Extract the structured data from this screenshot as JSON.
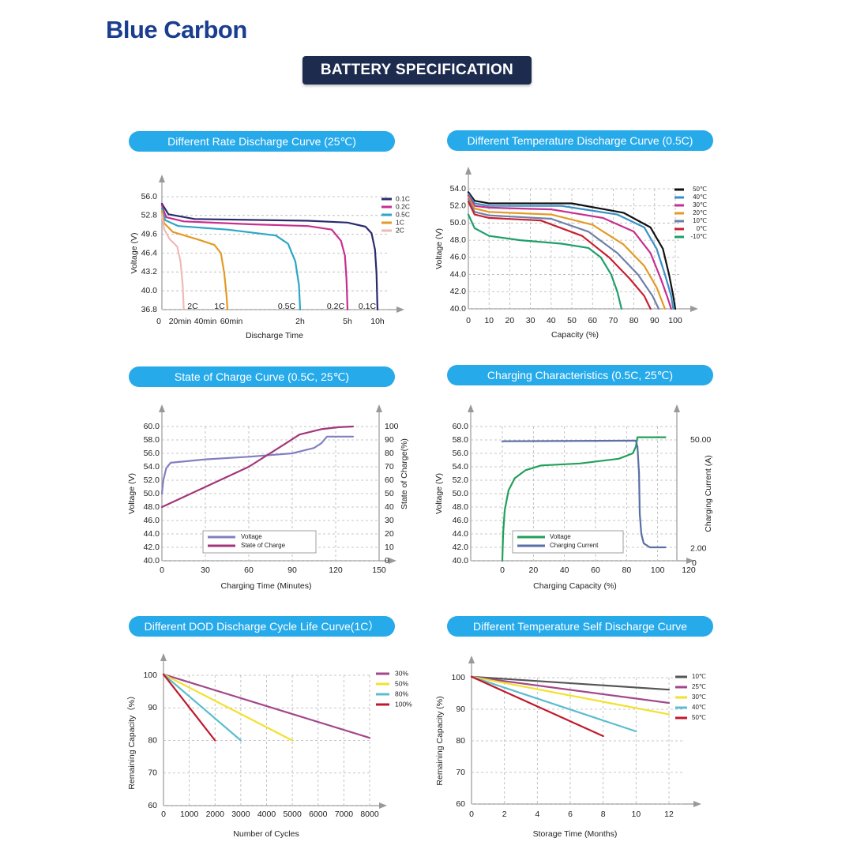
{
  "brand": "Blue Carbon",
  "banner": "BATTERY SPECIFICATION",
  "colors": {
    "pill": "#27aaea",
    "banner": "#1d2b4f",
    "brand": "#1b3d8f"
  },
  "chart_data": [
    {
      "title": "Different Rate Discharge Curve (25℃)",
      "type": "line",
      "xlabel": "Discharge Time",
      "ylabel": "Voltage (V)",
      "ylim": [
        36.8,
        56.0
      ],
      "yticks": [
        "56.0",
        "52.8",
        "49.6",
        "46.4",
        "43.2",
        "40.0",
        "36.8"
      ],
      "xtick_labels": [
        {
          "x": 0,
          "label": "0"
        },
        {
          "x": 20,
          "label": "20min"
        },
        {
          "x": 40,
          "label": "40min"
        },
        {
          "x": 60,
          "label": "60min"
        },
        {
          "x": 120,
          "label": "2h"
        },
        {
          "x": 300,
          "label": "5h"
        },
        {
          "x": 600,
          "label": "10h"
        }
      ],
      "x_unit": "minutes",
      "legend_placement": "top-right",
      "series": [
        {
          "name": "0.1C",
          "end_label": "0.1C",
          "color": "#2a2a6e",
          "points": [
            [
              0,
              54.8
            ],
            [
              6,
              53
            ],
            [
              30,
              52.2
            ],
            [
              150,
              51.9
            ],
            [
              300,
              51.6
            ],
            [
              480,
              50.9
            ],
            [
              540,
              49.8
            ],
            [
              575,
              47
            ],
            [
              590,
              43
            ],
            [
              598,
              38
            ],
            [
              600,
              36.8
            ]
          ]
        },
        {
          "name": "0.2C",
          "end_label": "0.2C",
          "color": "#c72f8f",
          "points": [
            [
              0,
              54.5
            ],
            [
              4,
              52.5
            ],
            [
              20,
              51.8
            ],
            [
              80,
              51.3
            ],
            [
              150,
              51.0
            ],
            [
              240,
              50.4
            ],
            [
              275,
              48.5
            ],
            [
              290,
              46
            ],
            [
              296,
              42
            ],
            [
              300,
              36.8
            ]
          ]
        },
        {
          "name": "0.5C",
          "end_label": "0.5C",
          "color": "#2aa7c4",
          "points": [
            [
              0,
              54
            ],
            [
              3,
              52
            ],
            [
              15,
              51
            ],
            [
              60,
              50.4
            ],
            [
              100,
              49.4
            ],
            [
              110,
              48
            ],
            [
              116,
              45
            ],
            [
              119,
              41
            ],
            [
              120,
              36.8
            ]
          ]
        },
        {
          "name": "1C",
          "end_label": "1C",
          "color": "#e49a25",
          "points": [
            [
              0,
              53.6
            ],
            [
              2,
              51.5
            ],
            [
              10,
              50
            ],
            [
              35,
              48.6
            ],
            [
              48,
              47.8
            ],
            [
              54,
              46.4
            ],
            [
              57,
              43
            ],
            [
              59,
              39.5
            ],
            [
              60,
              36.8
            ]
          ]
        },
        {
          "name": "2C",
          "end_label": "2C",
          "color": "#f2b8b8",
          "points": [
            [
              0,
              53
            ],
            [
              2,
              50.5
            ],
            [
              7,
              48.8
            ],
            [
              14,
              47.5
            ],
            [
              17,
              45
            ],
            [
              19,
              41
            ],
            [
              20,
              36.8
            ]
          ]
        }
      ]
    },
    {
      "title": "Different Temperature Discharge  Curve (0.5C)",
      "type": "line",
      "xlabel": "Capacity (%)",
      "ylabel": "Voltage (V)",
      "ylim": [
        40.0,
        54.0
      ],
      "xlim": [
        0,
        100
      ],
      "yticks": [
        "54.0",
        "52.0",
        "50.0",
        "48.0",
        "46.0",
        "44.0",
        "42.0",
        "40.0"
      ],
      "xticks": [
        "0",
        "10",
        "20",
        "30",
        "40",
        "50",
        "60",
        "70",
        "80",
        "90",
        "100"
      ],
      "legend_placement": "top-right",
      "series": [
        {
          "name": "50℃",
          "color": "#111111",
          "points": [
            [
              0,
              53.6
            ],
            [
              3,
              52.6
            ],
            [
              10,
              52.3
            ],
            [
              50,
              52.3
            ],
            [
              75,
              51.2
            ],
            [
              88,
              49.5
            ],
            [
              94,
              47
            ],
            [
              97,
              44
            ],
            [
              99,
              41.5
            ],
            [
              100,
              40
            ]
          ]
        },
        {
          "name": "40℃",
          "color": "#3a8fc9",
          "points": [
            [
              0,
              53.4
            ],
            [
              3,
              52.3
            ],
            [
              10,
              52
            ],
            [
              45,
              52
            ],
            [
              72,
              51
            ],
            [
              85,
              49.5
            ],
            [
              91,
              47
            ],
            [
              95,
              44
            ],
            [
              98,
              41.5
            ],
            [
              99,
              40
            ]
          ]
        },
        {
          "name": "30℃",
          "color": "#c72f8f",
          "points": [
            [
              0,
              53.2
            ],
            [
              3,
              52
            ],
            [
              10,
              51.8
            ],
            [
              40,
              51.6
            ],
            [
              65,
              50.6
            ],
            [
              80,
              49
            ],
            [
              88,
              46.5
            ],
            [
              93,
              43.5
            ],
            [
              96,
              41.5
            ],
            [
              98,
              40
            ]
          ]
        },
        {
          "name": "20℃",
          "color": "#e49a25",
          "points": [
            [
              0,
              53
            ],
            [
              3,
              51.7
            ],
            [
              10,
              51.3
            ],
            [
              40,
              51
            ],
            [
              60,
              49.8
            ],
            [
              75,
              47.5
            ],
            [
              85,
              45
            ],
            [
              91,
              42.5
            ],
            [
              95,
              40
            ]
          ]
        },
        {
          "name": "10℃",
          "color": "#6f7fa8",
          "points": [
            [
              0,
              52.8
            ],
            [
              3,
              51.3
            ],
            [
              10,
              50.9
            ],
            [
              40,
              50.5
            ],
            [
              58,
              49
            ],
            [
              72,
              46.5
            ],
            [
              82,
              44
            ],
            [
              89,
              41.5
            ],
            [
              92,
              40
            ]
          ]
        },
        {
          "name": "0℃",
          "color": "#c72030",
          "points": [
            [
              0,
              52.5
            ],
            [
              3,
              51
            ],
            [
              10,
              50.6
            ],
            [
              35,
              50.3
            ],
            [
              55,
              48.5
            ],
            [
              68,
              46
            ],
            [
              78,
              43.5
            ],
            [
              85,
              41.5
            ],
            [
              88,
              40
            ]
          ]
        },
        {
          "name": "-10℃",
          "color": "#1f9f6a",
          "points": [
            [
              0,
              51
            ],
            [
              3,
              49.4
            ],
            [
              10,
              48.5
            ],
            [
              25,
              48
            ],
            [
              45,
              47.6
            ],
            [
              58,
              47.1
            ],
            [
              64,
              46
            ],
            [
              69,
              44
            ],
            [
              72,
              42
            ],
            [
              74,
              40
            ]
          ]
        }
      ]
    },
    {
      "title": "State of Charge  Curve  (0.5C, 25℃)",
      "type": "line",
      "xlabel": "Charging Time  (Minutes)",
      "ylabel": "Voltage (V)",
      "y2label": "State of Charge(%)",
      "ylim": [
        40.0,
        60.0
      ],
      "y2lim": [
        0,
        100
      ],
      "xlim": [
        0,
        150
      ],
      "yticks": [
        "60.0",
        "58.0",
        "56.0",
        "54.0",
        "52.0",
        "50.0",
        "48.0",
        "46.0",
        "44.0",
        "42.0",
        "40.0"
      ],
      "y2ticks": [
        "100",
        "90",
        "80",
        "70",
        "60",
        "50",
        "40",
        "30",
        "20",
        "10",
        "0"
      ],
      "xticks": [
        "0",
        "30",
        "60",
        "90",
        "120",
        "150"
      ],
      "legend_placement": "bottom-center",
      "series": [
        {
          "name": "Voltage",
          "color": "#8080c0",
          "axis": "left",
          "points": [
            [
              0,
              50
            ],
            [
              1,
              52
            ],
            [
              3,
              53.8
            ],
            [
              6,
              54.6
            ],
            [
              30,
              55.1
            ],
            [
              60,
              55.5
            ],
            [
              90,
              56
            ],
            [
              105,
              56.8
            ],
            [
              110,
              57.5
            ],
            [
              114,
              58.5
            ],
            [
              132,
              58.5
            ]
          ]
        },
        {
          "name": "State of Charge",
          "color": "#a3357a",
          "axis": "right",
          "points": [
            [
              0,
              40
            ],
            [
              30,
              55
            ],
            [
              60,
              70
            ],
            [
              85,
              87
            ],
            [
              95,
              94
            ],
            [
              110,
              98
            ],
            [
              122,
              99.5
            ],
            [
              132,
              100
            ]
          ]
        }
      ]
    },
    {
      "title": "Charging Characteristics (0.5C, 25℃)",
      "type": "line",
      "xlabel": "Charging Capacity (%)",
      "ylabel": "Voltage (V)",
      "y2label": "Charging Current (A)",
      "ylim": [
        40.0,
        60.0
      ],
      "xlim": [
        -10,
        120
      ],
      "yticks": [
        "60.0",
        "58.0",
        "56.0",
        "54.0",
        "52.0",
        "50.0",
        "48.0",
        "46.0",
        "44.0",
        "42.0",
        "40.0"
      ],
      "y2ticks": [
        {
          "value": "50.00",
          "at_voltage": 58.0
        },
        {
          "value": "2.00",
          "at_voltage": 41.8
        }
      ],
      "xticks": [
        "0",
        "20",
        "40",
        "60",
        "80",
        "100",
        "120"
      ],
      "legend_placement": "bottom-center",
      "series": [
        {
          "name": "Voltage",
          "color": "#21a05a",
          "axis": "left",
          "points": [
            [
              0,
              40
            ],
            [
              0.5,
              44
            ],
            [
              1.5,
              47.5
            ],
            [
              4,
              50.5
            ],
            [
              8,
              52.3
            ],
            [
              15,
              53.5
            ],
            [
              25,
              54.2
            ],
            [
              50,
              54.5
            ],
            [
              75,
              55.2
            ],
            [
              84,
              56
            ],
            [
              86,
              57
            ],
            [
              87,
              58.4
            ],
            [
              105,
              58.4
            ]
          ]
        },
        {
          "name": "Charging Current",
          "color": "#5a6fa5",
          "axis": "right",
          "points": [
            [
              0,
              57.8
            ],
            [
              86,
              57.9
            ],
            [
              87,
              57
            ],
            [
              88,
              53
            ],
            [
              88.5,
              47
            ],
            [
              89.5,
              44
            ],
            [
              91,
              42.6
            ],
            [
              95,
              42
            ],
            [
              105,
              42
            ]
          ]
        }
      ]
    },
    {
      "title": "Different DOD Discharge Cycle Life Curve(1C）",
      "type": "line",
      "xlabel": "Number of Cycles",
      "ylabel": "Remaining Capacity（%）",
      "ylim": [
        60,
        100
      ],
      "xlim": [
        0,
        8000
      ],
      "yticks": [
        "100",
        "90",
        "80",
        "70",
        "60"
      ],
      "xticks": [
        "0",
        "1000",
        "2000",
        "3000",
        "4000",
        "5000",
        "6000",
        "7000",
        "8000"
      ],
      "legend_placement": "top-right",
      "series": [
        {
          "name": "30%",
          "color": "#a3478c",
          "points": [
            [
              0,
              100.3
            ],
            [
              8000,
              80.8
            ]
          ]
        },
        {
          "name": "50%",
          "color": "#f2e12e",
          "points": [
            [
              0,
              100.3
            ],
            [
              5000,
              80
            ]
          ]
        },
        {
          "name": "80%",
          "color": "#5cbcd0",
          "points": [
            [
              0,
              100.3
            ],
            [
              3000,
              80
            ]
          ]
        },
        {
          "name": "100%",
          "color": "#c0192b",
          "points": [
            [
              0,
              100.3
            ],
            [
              2000,
              80
            ]
          ]
        }
      ]
    },
    {
      "title": "Different Temperature Self Discharge Curve",
      "type": "line",
      "xlabel": "Storage Time (Months)",
      "ylabel": "Remaining Capacity (%)",
      "ylim": [
        60,
        100
      ],
      "xlim": [
        0,
        12
      ],
      "yticks": [
        "100",
        "90",
        "80",
        "70",
        "60"
      ],
      "xticks": [
        "0",
        "2",
        "4",
        "6",
        "8",
        "10",
        "12"
      ],
      "legend_placement": "top-right",
      "series": [
        {
          "name": "10℃",
          "color": "#555555",
          "points": [
            [
              0,
              100.3
            ],
            [
              12,
              96.2
            ]
          ]
        },
        {
          "name": "25℃",
          "color": "#a3478c",
          "points": [
            [
              0,
              100.3
            ],
            [
              12,
              92
            ]
          ]
        },
        {
          "name": "30℃",
          "color": "#f2e12e",
          "points": [
            [
              0,
              100.3
            ],
            [
              12,
              88.4
            ]
          ]
        },
        {
          "name": "40℃",
          "color": "#5cbcd0",
          "points": [
            [
              0,
              100.3
            ],
            [
              10,
              83
            ]
          ]
        },
        {
          "name": "50℃",
          "color": "#c0192b",
          "points": [
            [
              0,
              100.3
            ],
            [
              8,
              81.5
            ]
          ]
        }
      ]
    }
  ]
}
